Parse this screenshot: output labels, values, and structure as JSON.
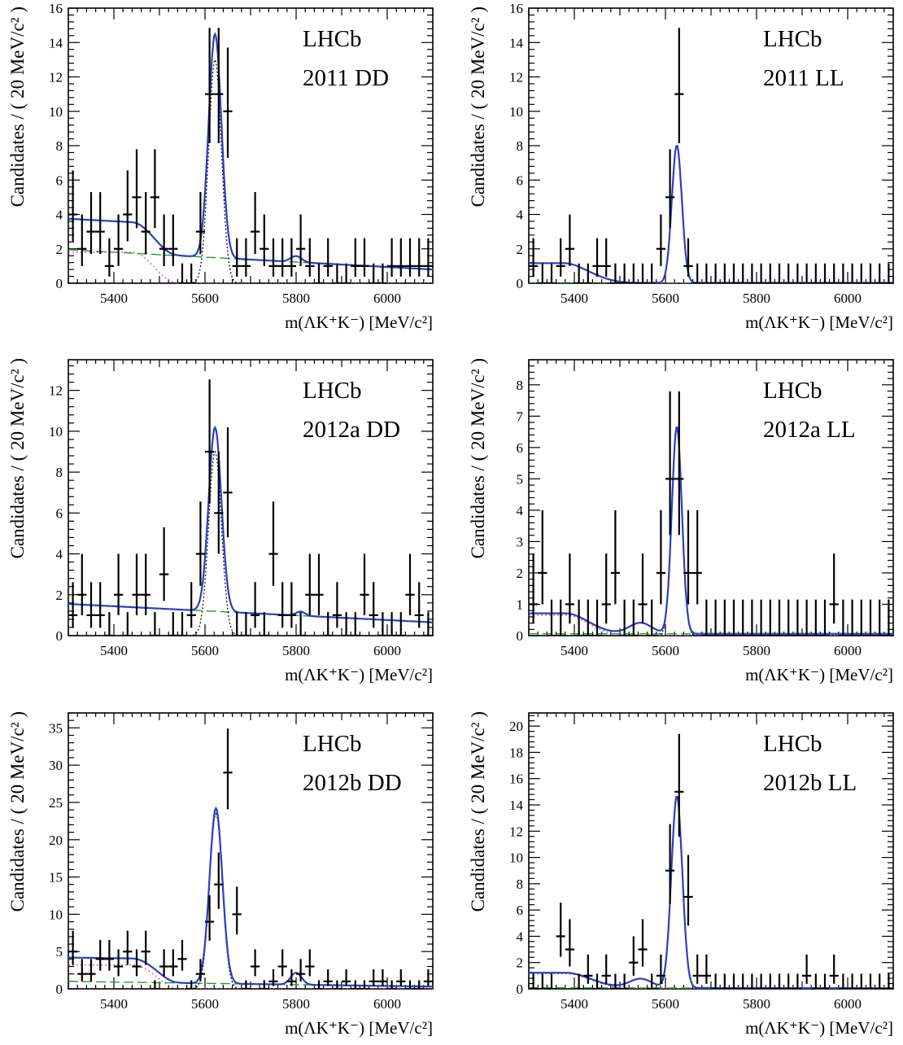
{
  "colors": {
    "total_fit": "#2f3dbd",
    "signal": "#000000",
    "combinatorial": "#2b9a2b",
    "partially_reconstructed": "#c040b0",
    "misid": "#b03030"
  },
  "y_axis_label": "Candidates / ( 20 MeV/c² )",
  "x_axis_label": "m(ΛK⁺K⁻) [MeV/c²]",
  "chart_data": [
    {
      "type": "scatter",
      "experiment": "LHCb",
      "label": "2011 DD",
      "xlim": [
        5300,
        6100
      ],
      "ylim": [
        0,
        16
      ],
      "xticks": [
        5400,
        5600,
        5800,
        6000
      ],
      "yticks": [
        0,
        2,
        4,
        6,
        8,
        10,
        12,
        14,
        16
      ],
      "x": [
        5310,
        5330,
        5350,
        5370,
        5390,
        5410,
        5430,
        5450,
        5470,
        5490,
        5510,
        5530,
        5550,
        5570,
        5590,
        5610,
        5630,
        5650,
        5670,
        5690,
        5710,
        5730,
        5750,
        5770,
        5790,
        5810,
        5830,
        5850,
        5870,
        5890,
        5910,
        5930,
        5950,
        5970,
        5990,
        6010,
        6030,
        6050,
        6070,
        6090
      ],
      "y": [
        4,
        2,
        3,
        3,
        1,
        2,
        4,
        5,
        3,
        5,
        2,
        2,
        0,
        0,
        3,
        11,
        11,
        10,
        1,
        1,
        3,
        2,
        1,
        1,
        1,
        2,
        1,
        0,
        1,
        0,
        0,
        1,
        1,
        0,
        0,
        1,
        1,
        1,
        1,
        1
      ],
      "signal": {
        "mean": 5622,
        "sigma": 14,
        "peak": 13
      },
      "background": {
        "comb_start": 1.95,
        "comb_end": 0.8,
        "partial_amp": 1.8,
        "partial_mean": 5440,
        "partial_sigma": 45,
        "extra": [
          [
            5800,
            0.35,
            12
          ]
        ]
      }
    },
    {
      "type": "scatter",
      "experiment": "LHCb",
      "label": "2011 LL",
      "xlim": [
        5300,
        6100
      ],
      "ylim": [
        0,
        16
      ],
      "xticks": [
        5400,
        5600,
        5800,
        6000
      ],
      "yticks": [
        0,
        2,
        4,
        6,
        8,
        10,
        12,
        14,
        16
      ],
      "x": [
        5310,
        5330,
        5350,
        5370,
        5390,
        5410,
        5430,
        5450,
        5470,
        5490,
        5510,
        5530,
        5550,
        5570,
        5590,
        5610,
        5630,
        5650,
        5670,
        5690,
        5710,
        5730,
        5750,
        5770,
        5790,
        5810,
        5830,
        5850,
        5870,
        5890,
        5910,
        5930,
        5950,
        5970,
        5990,
        6010,
        6030,
        6050,
        6070,
        6090
      ],
      "y": [
        1,
        0,
        0,
        1,
        2,
        0,
        0,
        1,
        1,
        0,
        0,
        0,
        0,
        0,
        2,
        5,
        11,
        1,
        0,
        0,
        0,
        0,
        0,
        0,
        0,
        0,
        0,
        0,
        0,
        0,
        0,
        0,
        0,
        0,
        0,
        0,
        0,
        0,
        0,
        0
      ],
      "signal": {
        "mean": 5625,
        "sigma": 11,
        "peak": 8.0
      },
      "background": {
        "comb_start": 0.02,
        "comb_end": 0.02,
        "partial_amp": 1.15,
        "partial_mean": 5375,
        "partial_sigma": 55,
        "extra": []
      }
    },
    {
      "type": "scatter",
      "experiment": "LHCb",
      "label": "2012a DD",
      "xlim": [
        5300,
        6100
      ],
      "ylim": [
        0,
        13.5
      ],
      "xticks": [
        5400,
        5600,
        5800,
        6000
      ],
      "yticks": [
        0,
        2,
        4,
        6,
        8,
        10,
        12
      ],
      "x": [
        5310,
        5330,
        5350,
        5370,
        5390,
        5410,
        5430,
        5450,
        5470,
        5490,
        5510,
        5530,
        5550,
        5570,
        5590,
        5610,
        5630,
        5650,
        5670,
        5690,
        5710,
        5730,
        5750,
        5770,
        5790,
        5810,
        5830,
        5850,
        5870,
        5890,
        5910,
        5930,
        5950,
        5970,
        5990,
        6010,
        6030,
        6050,
        6070,
        6090
      ],
      "y": [
        1,
        2,
        1,
        1,
        0,
        2,
        0,
        2,
        2,
        0,
        3,
        0,
        0,
        1,
        4,
        9,
        6,
        7,
        0,
        0,
        1,
        0,
        4,
        1,
        1,
        0,
        2,
        2,
        0,
        1,
        0,
        0,
        2,
        1,
        0,
        0,
        0,
        2,
        1,
        0
      ],
      "signal": {
        "mean": 5622,
        "sigma": 14,
        "peak": 9.0
      },
      "background": {
        "comb_start": 1.55,
        "comb_end": 0.65,
        "partial_amp": 0.0,
        "partial_mean": 5440,
        "partial_sigma": 45,
        "extra": [
          [
            5810,
            0.2,
            10
          ]
        ]
      }
    },
    {
      "type": "scatter",
      "experiment": "LHCb",
      "label": "2012a LL",
      "xlim": [
        5300,
        6100
      ],
      "ylim": [
        0,
        8.8
      ],
      "xticks": [
        5400,
        5600,
        5800,
        6000
      ],
      "yticks": [
        0,
        1,
        2,
        3,
        4,
        5,
        6,
        7,
        8
      ],
      "x": [
        5310,
        5330,
        5350,
        5370,
        5390,
        5410,
        5430,
        5450,
        5470,
        5490,
        5510,
        5530,
        5550,
        5570,
        5590,
        5610,
        5630,
        5650,
        5670,
        5690,
        5710,
        5730,
        5750,
        5770,
        5790,
        5810,
        5830,
        5850,
        5870,
        5890,
        5910,
        5930,
        5950,
        5970,
        5990,
        6010,
        6030,
        6050,
        6070,
        6090
      ],
      "y": [
        1,
        2,
        0,
        0,
        1,
        0,
        0,
        0,
        1,
        2,
        0,
        0,
        1,
        0,
        2,
        5,
        5,
        2,
        2,
        0,
        0,
        0,
        0,
        0,
        0,
        0,
        0,
        0,
        0,
        0,
        0,
        0,
        0,
        1,
        0,
        0,
        0,
        0,
        0,
        0
      ],
      "signal": {
        "mean": 5625,
        "sigma": 11,
        "peak": 6.6
      },
      "background": {
        "comb_start": 0.06,
        "comb_end": 0.06,
        "partial_amp": 0.65,
        "partial_mean": 5380,
        "partial_sigma": 50,
        "extra": [
          [
            5545,
            0.35,
            25
          ]
        ]
      }
    },
    {
      "type": "scatter",
      "experiment": "LHCb",
      "label": "2012b DD",
      "xlim": [
        5300,
        6100
      ],
      "ylim": [
        0,
        37
      ],
      "xticks": [
        5400,
        5600,
        5800,
        6000
      ],
      "yticks": [
        0,
        5,
        10,
        15,
        20,
        25,
        30,
        35
      ],
      "x": [
        5310,
        5330,
        5350,
        5370,
        5390,
        5410,
        5430,
        5450,
        5470,
        5490,
        5510,
        5530,
        5550,
        5570,
        5590,
        5610,
        5630,
        5650,
        5670,
        5690,
        5710,
        5730,
        5750,
        5770,
        5790,
        5810,
        5830,
        5850,
        5870,
        5890,
        5910,
        5930,
        5950,
        5970,
        5990,
        6010,
        6030,
        6050,
        6070,
        6090
      ],
      "y": [
        5,
        2,
        2,
        4,
        4,
        3,
        5,
        3,
        5,
        0,
        3,
        3,
        4,
        0,
        2,
        9,
        14,
        29,
        10,
        0,
        3,
        0,
        1,
        3,
        1,
        2,
        3,
        0,
        1,
        0,
        1,
        0,
        0,
        1,
        1,
        0,
        1,
        0,
        0,
        1
      ],
      "signal": {
        "mean": 5624,
        "sigma": 14,
        "peak": 23.5
      },
      "background": {
        "comb_start": 1.0,
        "comb_end": 0.3,
        "partial_amp": 3.2,
        "partial_mean": 5440,
        "partial_sigma": 50,
        "extra": [
          [
            5800,
            1.6,
            12
          ]
        ]
      }
    },
    {
      "type": "scatter",
      "experiment": "LHCb",
      "label": "2012b LL",
      "xlim": [
        5300,
        6100
      ],
      "ylim": [
        0,
        21
      ],
      "xticks": [
        5400,
        5600,
        5800,
        6000
      ],
      "yticks": [
        0,
        2,
        4,
        6,
        8,
        10,
        12,
        14,
        16,
        18,
        20
      ],
      "x": [
        5310,
        5330,
        5350,
        5370,
        5390,
        5410,
        5430,
        5450,
        5470,
        5490,
        5510,
        5530,
        5550,
        5570,
        5590,
        5610,
        5630,
        5650,
        5670,
        5690,
        5710,
        5730,
        5750,
        5770,
        5790,
        5810,
        5830,
        5850,
        5870,
        5890,
        5910,
        5930,
        5950,
        5970,
        5990,
        6010,
        6030,
        6050,
        6070,
        6090
      ],
      "y": [
        0,
        0,
        0,
        4,
        3,
        0,
        1,
        0,
        1,
        0,
        0,
        2,
        3,
        0,
        1,
        9,
        15,
        7,
        1,
        1,
        0,
        0,
        0,
        0,
        0,
        0,
        0,
        0,
        0,
        0,
        1,
        0,
        0,
        1,
        0,
        0,
        0,
        0,
        0,
        0
      ],
      "signal": {
        "mean": 5625,
        "sigma": 12,
        "peak": 14.6
      },
      "background": {
        "comb_start": 0.08,
        "comb_end": 0.05,
        "partial_amp": 1.15,
        "partial_mean": 5380,
        "partial_sigma": 55,
        "extra": [
          [
            5545,
            0.7,
            25
          ]
        ]
      }
    }
  ]
}
